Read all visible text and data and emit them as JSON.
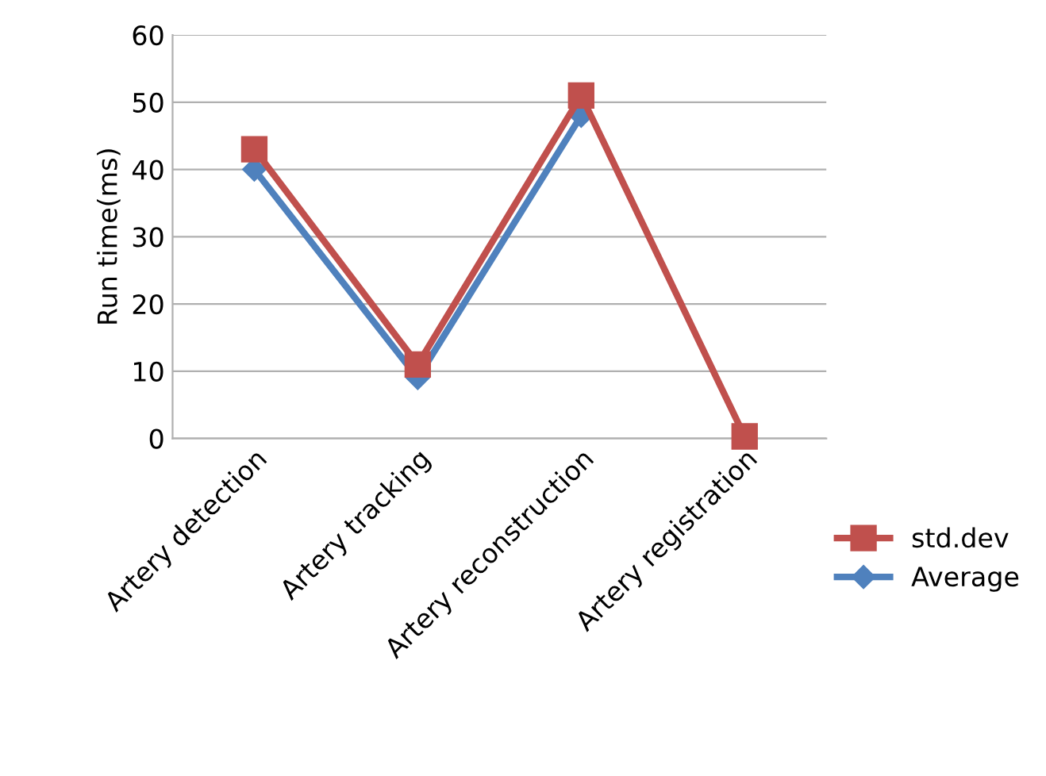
{
  "chart_data": {
    "type": "line",
    "ylabel": "Run time(ms)",
    "categories": [
      "Artery detection",
      "Artery tracking",
      "Artery reconstruction",
      "Artery registration"
    ],
    "series": [
      {
        "name": "std.dev",
        "color": "#c0504d",
        "marker": "square",
        "values": [
          43,
          11,
          51,
          0.3
        ]
      },
      {
        "name": "Average",
        "color": "#4f81bd",
        "marker": "diamond",
        "values": [
          40,
          9,
          48,
          null
        ]
      }
    ],
    "ylim": [
      0,
      60
    ],
    "yticks": [
      0,
      10,
      20,
      30,
      40,
      50,
      60
    ],
    "grid": "y",
    "legend": "right"
  }
}
